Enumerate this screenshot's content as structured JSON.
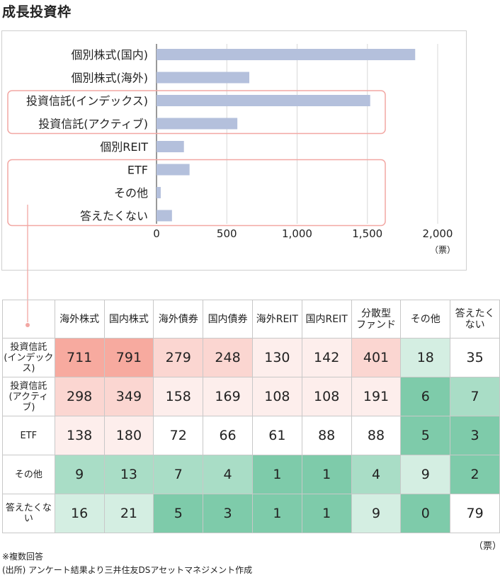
{
  "page": {
    "title": "成長投資枠",
    "table_unit": "（票）",
    "notes": [
      "※複数回答",
      "(出所) アンケート結果より三井住友DSアセットマネジメント作成"
    ]
  },
  "colors": {
    "bar": "#b4c0dc",
    "highlight_box": "#f2a7a3",
    "connector": "#f2a7a3",
    "heat_red_scale": [
      "#fdeeec",
      "#fbd6d1",
      "#f9bcb3",
      "#f7aa9f"
    ],
    "heat_green_scale": [
      "#d4eee2",
      "#a9ddc6",
      "#7ecbaa"
    ]
  },
  "chart_data": [
    {
      "type": "bar",
      "orientation": "horizontal",
      "categories": [
        "個別株式(国内)",
        "個別株式(海外)",
        "投資信託(インデックス)",
        "投資信託(アクティブ)",
        "個別REIT",
        "ETF",
        "その他",
        "答えたくない"
      ],
      "values": [
        1840,
        660,
        1520,
        575,
        195,
        235,
        30,
        110
      ],
      "xlim": [
        0,
        2000
      ],
      "xticks": [
        0,
        500,
        1000,
        1500,
        2000
      ],
      "xtick_labels": [
        "0",
        "500",
        "1,000",
        "1,500",
        "2,000"
      ],
      "xunit": "（票）",
      "grid": true,
      "highlight_groups": [
        [
          2,
          3
        ],
        [
          5,
          6,
          7
        ]
      ]
    },
    {
      "type": "heatmap",
      "columns": [
        "海外株式",
        "国内株式",
        "海外債券",
        "国内債券",
        "海外REIT",
        "国内REIT",
        "分散型\nファンド",
        "その他",
        "答えたくない"
      ],
      "rows": [
        "投資信託\n(インデックス)",
        "投資信託\n(アクティブ)",
        "ETF",
        "その他",
        "答えたくない"
      ],
      "values": [
        [
          711,
          791,
          279,
          248,
          130,
          142,
          401,
          18,
          35
        ],
        [
          298,
          349,
          158,
          169,
          108,
          108,
          191,
          6,
          7
        ],
        [
          138,
          180,
          72,
          66,
          61,
          88,
          88,
          5,
          3
        ],
        [
          9,
          13,
          7,
          4,
          1,
          1,
          4,
          9,
          2
        ],
        [
          16,
          21,
          5,
          3,
          1,
          1,
          9,
          0,
          79
        ]
      ],
      "cell_colors": [
        [
          "#f7aa9f",
          "#f7aa9f",
          "#fbd6d1",
          "#fbd6d1",
          "#fdeeec",
          "#fdeeec",
          "#fbd6d1",
          "#d4eee2",
          "#ffffff"
        ],
        [
          "#fbd6d1",
          "#fbd6d1",
          "#fdeeec",
          "#fdeeec",
          "#fdeeec",
          "#fdeeec",
          "#fdeeec",
          "#7ecbaa",
          "#a9ddc6"
        ],
        [
          "#fdeeec",
          "#fdeeec",
          "#ffffff",
          "#ffffff",
          "#ffffff",
          "#ffffff",
          "#ffffff",
          "#7ecbaa",
          "#7ecbaa"
        ],
        [
          "#a9ddc6",
          "#a9ddc6",
          "#a9ddc6",
          "#a9ddc6",
          "#7ecbaa",
          "#7ecbaa",
          "#a9ddc6",
          "#d4eee2",
          "#7ecbaa"
        ],
        [
          "#d4eee2",
          "#d4eee2",
          "#7ecbaa",
          "#7ecbaa",
          "#7ecbaa",
          "#7ecbaa",
          "#d4eee2",
          "#7ecbaa",
          "#ffffff"
        ]
      ]
    }
  ]
}
